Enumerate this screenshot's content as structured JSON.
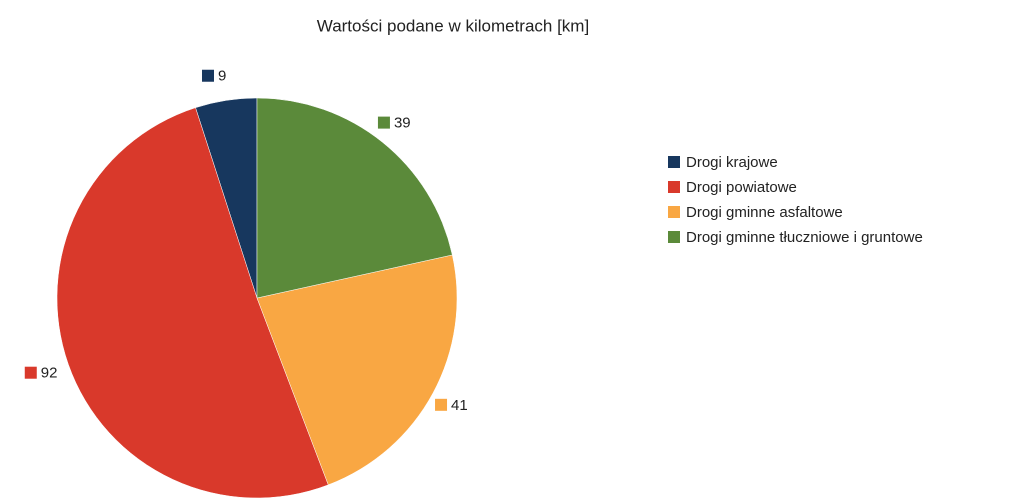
{
  "chart_data": {
    "type": "pie",
    "title": "Wartości podane w kilometrach [km]",
    "categories": [
      "Drogi krajowe",
      "Drogi powiatowe",
      "Drogi gminne asfaltowe",
      "Drogi gminne tłuczniowe i gruntowe"
    ],
    "values": [
      9,
      92,
      41,
      39
    ],
    "colors": [
      "#17375e",
      "#d9392b",
      "#f9a743",
      "#5b8a3a"
    ],
    "legend": "right"
  }
}
